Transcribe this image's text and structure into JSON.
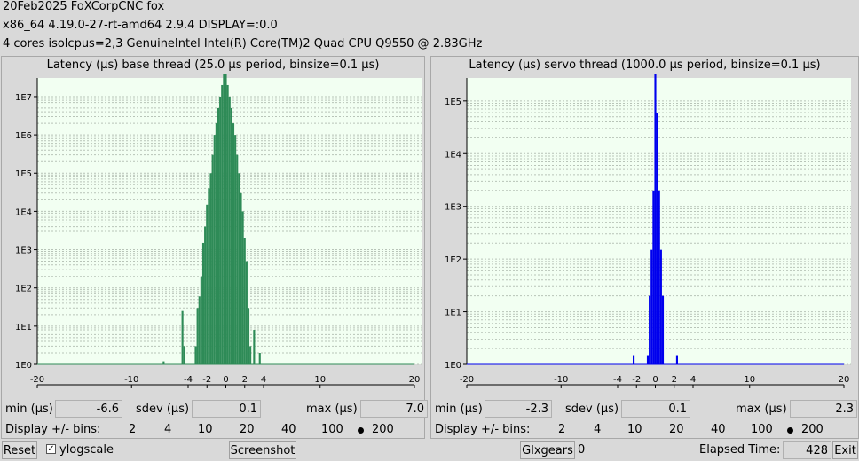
{
  "header": {
    "line1": "20Feb2025 FoXCorpCNC fox",
    "line2": " x86_64  4.19.0-27-rt-amd64  2.9.4  DISPLAY=:0.0",
    "line3": " 4 cores  isolcpus=2,3   GenuineIntel  Intel(R) Core(TM)2 Quad CPU Q9550 @ 2.83GHz"
  },
  "stats_labels": {
    "min": "min (µs)",
    "sdev": "sdev (µs)",
    "max": "max (µs)",
    "display_bins": "Display +/- bins:"
  },
  "bins_options": [
    "2",
    "4",
    "10",
    "20",
    "40",
    "100",
    "200"
  ],
  "base": {
    "min": "-6.6",
    "sdev": "0.1",
    "max": "7.0",
    "bins_selected": "200",
    "color": "#2e8b57"
  },
  "servo": {
    "min": "-2.3",
    "sdev": "0.1",
    "max": "2.3",
    "bins_selected": "200",
    "color": "#0000ee"
  },
  "footer": {
    "reset": "Reset",
    "ylogscale": "ylogscale",
    "ylogscale_checked": "✓",
    "screenshot": "Screenshot",
    "glxgears": "Glxgears",
    "glxgears_count": "0",
    "elapsed_label": "Elapsed Time:",
    "elapsed_value": "428",
    "exit": "Exit"
  },
  "chart_data": [
    {
      "type": "bar",
      "title": "Latency (µs) base thread (25.0 µs period, binsize=0.1 µs)",
      "y_scale": "log",
      "y_tick_labels": [
        "1E0",
        "1E1",
        "1E2",
        "1E3",
        "1E4",
        "1E5",
        "1E6",
        "1E7"
      ],
      "xlim": [
        -20,
        20
      ],
      "x_ticks": [
        -20,
        -10,
        -4,
        -2,
        0,
        2,
        4,
        10,
        20
      ],
      "x_tick_labels": [
        "-20",
        "-10",
        "-4",
        "-2",
        "0",
        "2",
        "4",
        "10",
        "20"
      ],
      "grid": true,
      "series": [
        {
          "x": [
            -6.6,
            -4.6,
            -4.4,
            -3.2,
            -3.0,
            -2.8,
            -2.6,
            -2.4,
            -2.2,
            -2.0,
            -1.8,
            -1.6,
            -1.4,
            -1.2,
            -1.0,
            -0.8,
            -0.6,
            -0.4,
            -0.2,
            0.0,
            0.2,
            0.4,
            0.6,
            0.8,
            1.0,
            1.2,
            1.4,
            1.6,
            1.8,
            2.0,
            2.2,
            2.4,
            2.6,
            3.0,
            3.2,
            3.6,
            4.0,
            4.6,
            5.0,
            5.4,
            7.0
          ],
          "y": [
            1.2,
            25,
            3,
            3,
            30,
            60,
            200,
            1500,
            4000,
            15000,
            40000,
            100000,
            300000,
            1000000,
            2000000,
            5000000,
            10000000,
            20000000,
            40000000,
            100000000,
            20000000,
            10000000,
            5000000,
            2000000,
            1000000,
            300000,
            100000,
            30000,
            10000,
            2000,
            500,
            30,
            3,
            8,
            1,
            2,
            1,
            1,
            1,
            1,
            1
          ]
        }
      ]
    },
    {
      "type": "bar",
      "title": "Latency (µs) servo thread (1000.0 µs period, binsize=0.1 µs)",
      "y_scale": "log",
      "y_tick_labels": [
        "1E0",
        "1E1",
        "1E2",
        "1E3",
        "1E4",
        "1E5"
      ],
      "xlim": [
        -20,
        20
      ],
      "x_ticks": [
        -20,
        -10,
        -4,
        -2,
        0,
        2,
        4,
        10,
        20
      ],
      "x_tick_labels": [
        "-20",
        "-10",
        "-4",
        "-2",
        "0",
        "2",
        "4",
        "10",
        "20"
      ],
      "grid": true,
      "series": [
        {
          "x": [
            -2.3,
            -0.8,
            -0.6,
            -0.4,
            -0.2,
            0.0,
            0.2,
            0.4,
            0.6,
            0.8,
            2.3
          ],
          "y": [
            1.5,
            1.5,
            20,
            150,
            2000,
            350000,
            60000,
            2000,
            150,
            20,
            1.5
          ]
        }
      ]
    }
  ]
}
